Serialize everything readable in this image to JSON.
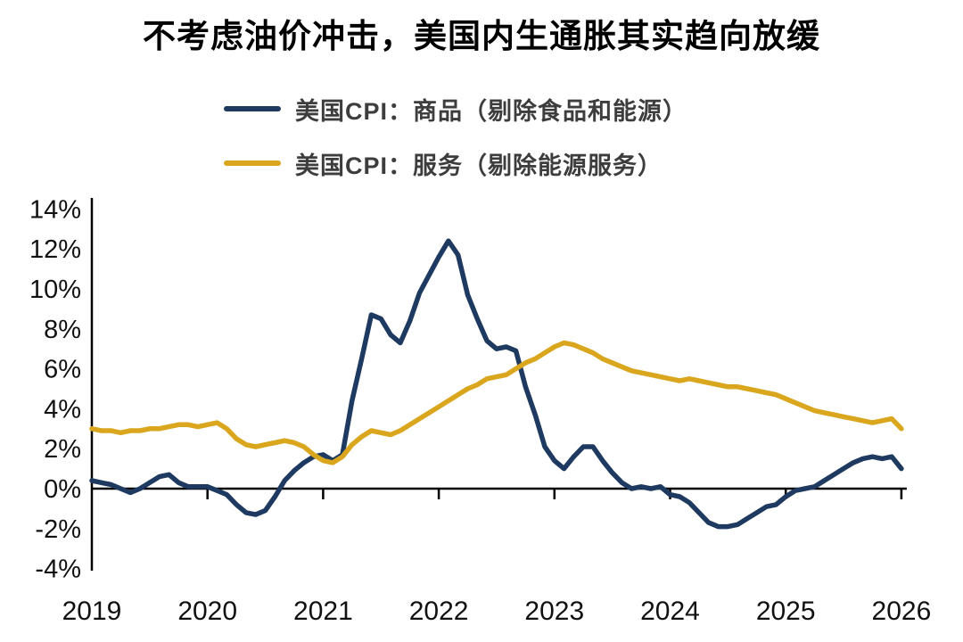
{
  "title": "不考虑油价冲击，美国内生通胀其实趋向放缓",
  "chart_data": {
    "type": "line",
    "title": "不考虑油价冲击，美国内生通胀其实趋向放缓",
    "x_frequency": "monthly",
    "x_start": "2019-01",
    "x_end": "2026-01",
    "x_ticks": [
      2019,
      2020,
      2021,
      2022,
      2023,
      2024,
      2025,
      2026
    ],
    "y_ticks": [
      {
        "label": "14%",
        "value": 14
      },
      {
        "label": "12%",
        "value": 12
      },
      {
        "label": "10%",
        "value": 10
      },
      {
        "label": "8%",
        "value": 8
      },
      {
        "label": "6%",
        "value": 6
      },
      {
        "label": "4%",
        "value": 4
      },
      {
        "label": "2%",
        "value": 2
      },
      {
        "label": "0%",
        "value": 0
      },
      {
        "label": "-2%",
        "value": -2
      },
      {
        "label": "-4%",
        "value": -4
      }
    ],
    "ylim": [
      -4,
      14
    ],
    "grid": false,
    "legend_position": "top-left",
    "series": [
      {
        "name": "美国CPI：商品（剔除食品和能源）",
        "color": "#1f3a60",
        "values": [
          0.4,
          0.3,
          0.2,
          0.0,
          -0.2,
          0.0,
          0.3,
          0.6,
          0.7,
          0.3,
          0.1,
          0.1,
          0.1,
          -0.1,
          -0.3,
          -0.8,
          -1.2,
          -1.3,
          -1.1,
          -0.4,
          0.4,
          0.9,
          1.3,
          1.6,
          1.7,
          1.4,
          1.7,
          4.4,
          6.5,
          8.7,
          8.5,
          7.7,
          7.3,
          8.4,
          9.8,
          10.7,
          11.6,
          12.4,
          11.7,
          9.7,
          8.5,
          7.4,
          7.0,
          7.1,
          6.9,
          5.1,
          3.7,
          2.1,
          1.4,
          1.0,
          1.6,
          2.1,
          2.1,
          1.4,
          0.8,
          0.3,
          0.0,
          0.1,
          0.0,
          0.1,
          -0.3,
          -0.4,
          -0.7,
          -1.2,
          -1.7,
          -1.9,
          -1.9,
          -1.8,
          -1.5,
          -1.2,
          -0.9,
          -0.8,
          -0.4,
          -0.1,
          0.0,
          0.1,
          0.4,
          0.7,
          1.0,
          1.3,
          1.5,
          1.6,
          1.5,
          1.6,
          1.0
        ]
      },
      {
        "name": "美国CPI：服务（剔除能源服务）",
        "color": "#d9a61d",
        "values": [
          3.0,
          2.9,
          2.9,
          2.8,
          2.9,
          2.9,
          3.0,
          3.0,
          3.1,
          3.2,
          3.2,
          3.1,
          3.2,
          3.3,
          3.0,
          2.5,
          2.2,
          2.1,
          2.2,
          2.3,
          2.4,
          2.3,
          2.1,
          1.7,
          1.4,
          1.3,
          1.6,
          2.2,
          2.6,
          2.9,
          2.8,
          2.7,
          2.9,
          3.2,
          3.5,
          3.8,
          4.1,
          4.4,
          4.7,
          5.0,
          5.2,
          5.5,
          5.6,
          5.7,
          6.0,
          6.3,
          6.5,
          6.8,
          7.1,
          7.3,
          7.2,
          7.0,
          6.8,
          6.5,
          6.3,
          6.1,
          5.9,
          5.8,
          5.7,
          5.6,
          5.5,
          5.4,
          5.5,
          5.4,
          5.3,
          5.2,
          5.1,
          5.1,
          5.0,
          4.9,
          4.8,
          4.7,
          4.5,
          4.3,
          4.1,
          3.9,
          3.8,
          3.7,
          3.6,
          3.5,
          3.4,
          3.3,
          3.4,
          3.5,
          3.0
        ]
      }
    ]
  }
}
